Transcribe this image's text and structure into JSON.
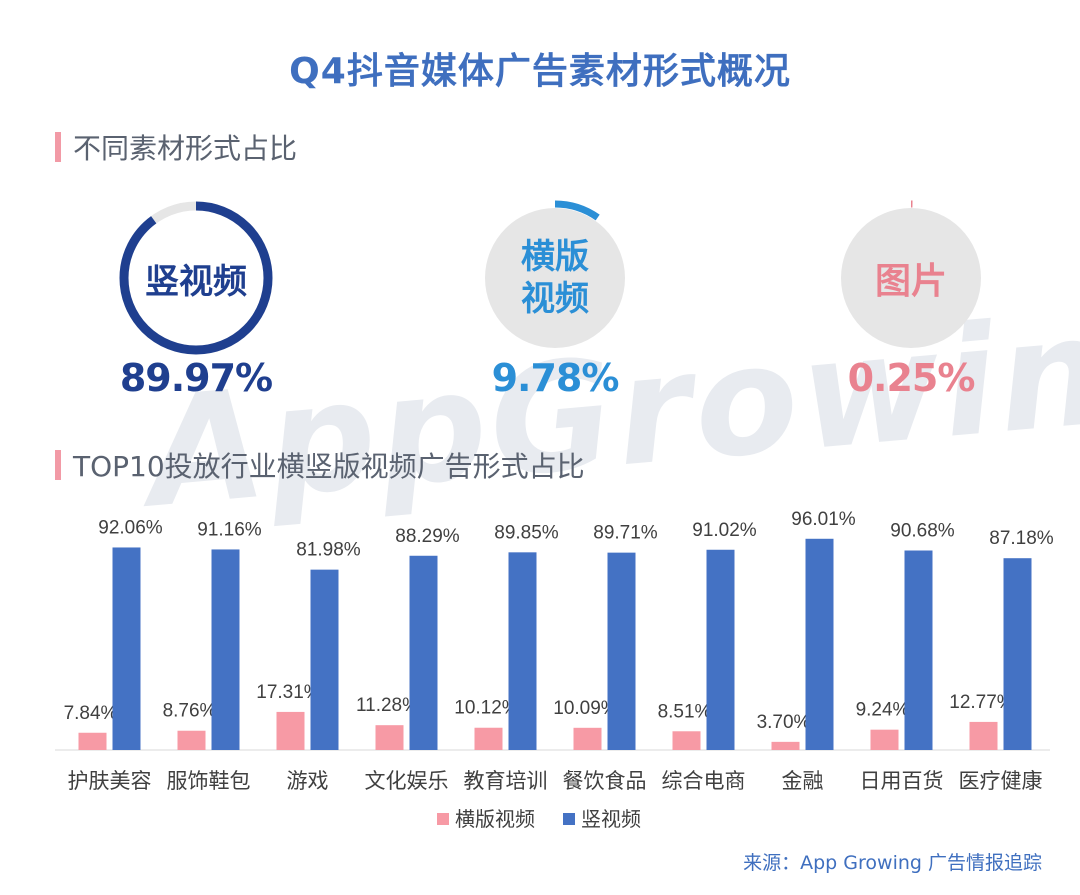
{
  "title": "Q4抖音媒体广告素材形式概况",
  "section1": "不同素材形式占比",
  "section2": "TOP10投放行业横竖版视频广告形式占比",
  "watermark": "AppGrowing",
  "rings": [
    {
      "label": "竖视频",
      "value": 89.97,
      "value_text": "89.97%",
      "color": "#1f3f8f",
      "track": "#e6e6e6"
    },
    {
      "label": "横版视频",
      "label_lines": [
        "横版",
        "视频"
      ],
      "value": 9.78,
      "value_text": "9.78%",
      "color": "#2b8fd6",
      "track": "#e6e6e6"
    },
    {
      "label": "图片",
      "value": 0.25,
      "value_text": "0.25%",
      "color": "#e9828f",
      "track": "#e6e6e6"
    }
  ],
  "chart_data": {
    "type": "bar",
    "categories": [
      "护肤美容",
      "服饰鞋包",
      "游戏",
      "文化娱乐",
      "教育培训",
      "餐饮食品",
      "综合电商",
      "金融",
      "日用百货",
      "医疗健康"
    ],
    "series": [
      {
        "name": "横版视频",
        "color": "#f79aa5",
        "values": [
          7.84,
          8.76,
          17.31,
          11.28,
          10.12,
          10.09,
          8.51,
          3.7,
          9.24,
          12.77
        ],
        "labels": [
          "7.84%",
          "8.76%",
          "17.31%",
          "11.28%",
          "10.12%",
          "10.09%",
          "8.51%",
          "3.70%",
          "9.24%",
          "12.77%"
        ]
      },
      {
        "name": "竖视频",
        "color": "#4472c4",
        "values": [
          92.06,
          91.16,
          81.98,
          88.29,
          89.85,
          89.71,
          91.02,
          96.01,
          90.68,
          87.18
        ],
        "labels": [
          "92.06%",
          "91.16%",
          "81.98%",
          "88.29%",
          "89.85%",
          "89.71%",
          "91.02%",
          "96.01%",
          "90.68%",
          "87.18%"
        ]
      }
    ],
    "ylim": [
      0,
      100
    ],
    "grid": false,
    "legend": "bottom"
  },
  "source": "来源：App  Growing 广告情报追踪"
}
